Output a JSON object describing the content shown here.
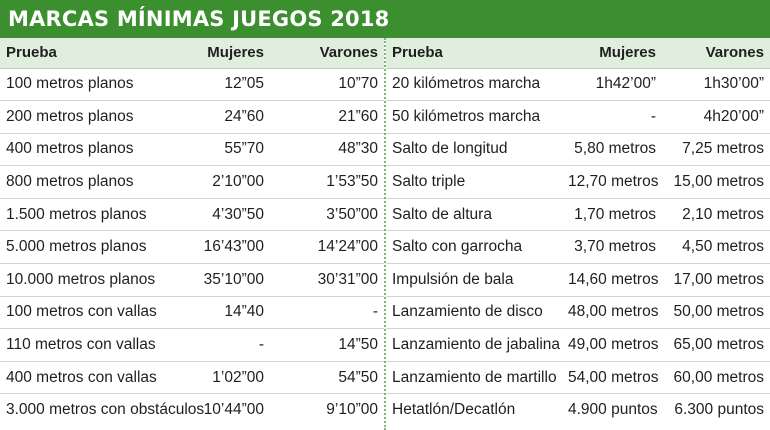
{
  "title": "MARCAS MÍNIMAS JUEGOS 2018",
  "colors": {
    "title_bg": "#3c8f2e",
    "header_bg": "#dfeedd",
    "divider": "#7fb87a"
  },
  "left_table": {
    "headers": [
      "Prueba",
      "Mujeres",
      "Varones"
    ],
    "rows": [
      {
        "prueba": "100 metros planos",
        "mujeres": "12”05",
        "varones": "10”70"
      },
      {
        "prueba": "200 metros planos",
        "mujeres": "24”60",
        "varones": "21”60"
      },
      {
        "prueba": "400 metros planos",
        "mujeres": "55”70",
        "varones": "48”30"
      },
      {
        "prueba": "800 metros planos",
        "mujeres": "2’10”00",
        "varones": "1’53”50"
      },
      {
        "prueba": "1.500 metros planos",
        "mujeres": "4’30”50",
        "varones": "3’50”00"
      },
      {
        "prueba": "5.000 metros planos",
        "mujeres": "16’43”00",
        "varones": "14’24”00"
      },
      {
        "prueba": "10.000 metros planos",
        "mujeres": "35’10”00",
        "varones": "30’31”00"
      },
      {
        "prueba": "100 metros con vallas",
        "mujeres": "14”40",
        "varones": "-"
      },
      {
        "prueba": "110 metros con vallas",
        "mujeres": "-",
        "varones": "14”50"
      },
      {
        "prueba": "400 metros con vallas",
        "mujeres": "1’02”00",
        "varones": "54”50"
      },
      {
        "prueba": "3.000 metros con obstáculos",
        "mujeres": "10’44”00",
        "varones": "9’10”00"
      }
    ]
  },
  "right_table": {
    "headers": [
      "Prueba",
      "Mujeres",
      "Varones"
    ],
    "rows": [
      {
        "prueba": "20 kilómetros marcha",
        "mujeres": "1h42’00”",
        "varones": "1h30’00”"
      },
      {
        "prueba": "50 kilómetros marcha",
        "mujeres": "-",
        "varones": "4h20’00”"
      },
      {
        "prueba": "Salto de longitud",
        "mujeres": "5,80 metros",
        "varones": "7,25 metros"
      },
      {
        "prueba": "Salto triple",
        "mujeres": "12,70 metros",
        "varones": "15,00 metros"
      },
      {
        "prueba": "Salto de altura",
        "mujeres": "1,70 metros",
        "varones": "2,10 metros"
      },
      {
        "prueba": "Salto con garrocha",
        "mujeres": "3,70 metros",
        "varones": "4,50 metros"
      },
      {
        "prueba": "Impulsión de bala",
        "mujeres": "14,60 metros",
        "varones": "17,00 metros"
      },
      {
        "prueba": "Lanzamiento de disco",
        "mujeres": "48,00 metros",
        "varones": "50,00 metros"
      },
      {
        "prueba": "Lanzamiento de jabalina",
        "mujeres": "49,00 metros",
        "varones": "65,00 metros"
      },
      {
        "prueba": "Lanzamiento de martillo",
        "mujeres": "54,00 metros",
        "varones": "60,00 metros"
      },
      {
        "prueba": "Hetatlón/Decatlón",
        "mujeres": "4.900 puntos",
        "varones": "6.300 puntos"
      }
    ]
  }
}
